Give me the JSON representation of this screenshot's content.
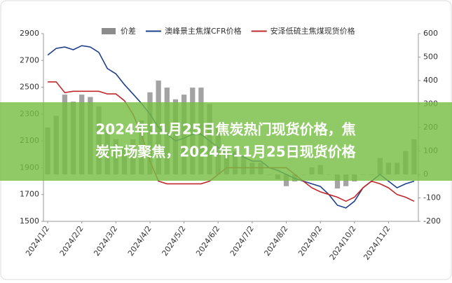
{
  "chart_data": {
    "type": "bar_line",
    "title_lines": [
      "2024年11月25日焦炭热门现货价格，焦",
      "炭市场聚焦，2024年11月25日现货价格"
    ],
    "categories": [
      "2024/1/2",
      null,
      null,
      null,
      "2024/2/2",
      null,
      null,
      null,
      "2024/3/2",
      null,
      null,
      null,
      "2024/4/2",
      null,
      null,
      null,
      "2024/5/2",
      null,
      null,
      null,
      "2024/6/2",
      null,
      null,
      null,
      "2024/7/2",
      null,
      null,
      null,
      "2024/8/2",
      null,
      null,
      null,
      "2024/9/2",
      null,
      null,
      null,
      "2024/10/2",
      null,
      null,
      null,
      "2024/11/2",
      null,
      null,
      null
    ],
    "series": [
      {
        "name": "价差",
        "type": "bar",
        "axis": "y2",
        "color": "#8c8c8c",
        "values": [
          200,
          250,
          340,
          310,
          340,
          330,
          290,
          190,
          150,
          120,
          150,
          230,
          350,
          400,
          370,
          320,
          340,
          370,
          370,
          300,
          200,
          100,
          100,
          80,
          50,
          50,
          0,
          -20,
          -50,
          -30,
          0,
          30,
          40,
          0,
          -60,
          -50,
          -30,
          0,
          0,
          70,
          50,
          50,
          100,
          150
        ]
      },
      {
        "name": "澳峰景主焦煤CFR价格",
        "type": "line",
        "color": "#1f3f8a",
        "values": [
          2740,
          2790,
          2800,
          2780,
          2810,
          2800,
          2760,
          2640,
          2600,
          2520,
          2450,
          2380,
          2300,
          2200,
          2150,
          2100,
          2120,
          2150,
          2150,
          2100,
          2050,
          2000,
          2000,
          1980,
          1950,
          1950,
          1900,
          1880,
          1850,
          1820,
          1800,
          1780,
          1760,
          1700,
          1620,
          1600,
          1650,
          1750,
          1800,
          1850,
          1800,
          1750,
          1780,
          1800
        ]
      },
      {
        "name": "安泽低硫主焦煤现货价格",
        "type": "line",
        "color": "#c0282d",
        "values": [
          2540,
          2540,
          2460,
          2470,
          2470,
          2470,
          2470,
          2450,
          2450,
          2400,
          2300,
          2150,
          1950,
          1800,
          1780,
          1780,
          1780,
          1780,
          1780,
          1800,
          1850,
          1900,
          1900,
          1900,
          1900,
          1900,
          1900,
          1900,
          1900,
          1850,
          1800,
          1750,
          1720,
          1700,
          1680,
          1650,
          1680,
          1750,
          1800,
          1780,
          1750,
          1700,
          1680,
          1650
        ]
      }
    ],
    "ylim": [
      1500,
      2900
    ],
    "yticks": [
      1500,
      1700,
      1900,
      2100,
      2300,
      2500,
      2700,
      2900
    ],
    "y2lim": [
      -200,
      600
    ],
    "y2ticks": [
      -200,
      -100,
      0,
      100,
      200,
      300,
      400,
      500,
      600
    ]
  }
}
